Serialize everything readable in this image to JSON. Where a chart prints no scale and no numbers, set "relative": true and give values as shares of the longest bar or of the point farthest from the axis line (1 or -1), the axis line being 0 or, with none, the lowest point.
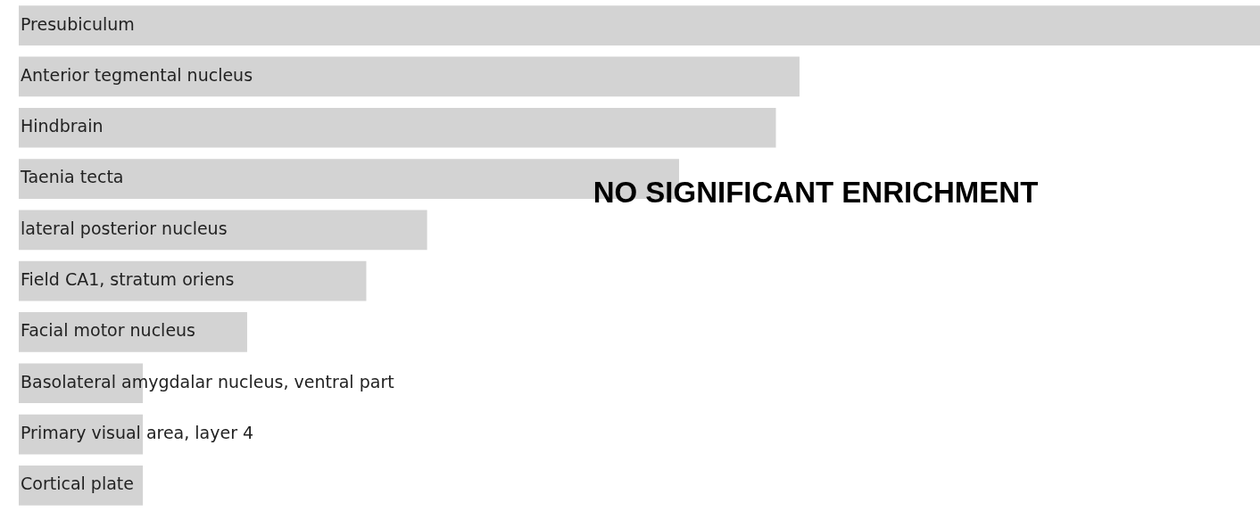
{
  "chart_data": {
    "type": "bar",
    "orientation": "horizontal",
    "relative": true,
    "color": "#d3d3d3",
    "categories": [
      "Presubiculum",
      "Anterior tegmental nucleus",
      "Hindbrain",
      "Taenia tecta",
      "lateral posterior nucleus",
      "Field CA1, stratum oriens",
      "Facial motor nucleus",
      "Basolateral amygdalar nucleus, ventral part",
      "Primary visual area, layer 4",
      "Cortical plate"
    ],
    "values": [
      1,
      0.629,
      0.61,
      0.532,
      0.329,
      0.28,
      0.184,
      0.1,
      0.1,
      0.1
    ],
    "annotations": [
      "NO SIGNIFICANT ENRICHMENT"
    ]
  }
}
